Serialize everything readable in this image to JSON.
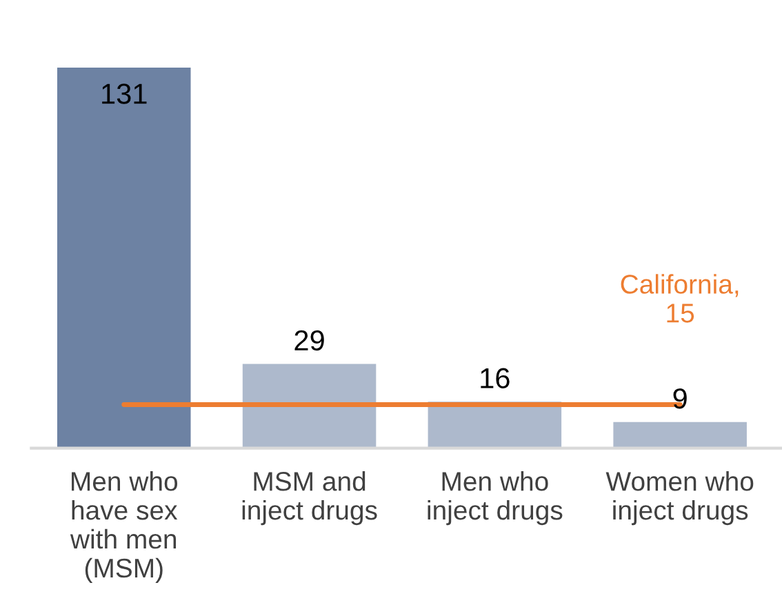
{
  "chart_data": {
    "type": "bar",
    "categories": [
      "Men who\nhave sex\nwith men\n(MSM)",
      "MSM and\ninject drugs",
      "Men who\ninject drugs",
      "Women who\ninject drugs"
    ],
    "series": [
      {
        "type": "bar",
        "colors": [
          "#6d82a3",
          "#adb9cc",
          "#adb9cc",
          "#adb9cc"
        ],
        "values": [
          131,
          29,
          16,
          9
        ],
        "value_labels": [
          "131",
          "29",
          "16",
          "9"
        ]
      },
      {
        "type": "line",
        "color": "#ed7d31",
        "values": [
          15,
          15,
          15,
          15
        ],
        "value_labels": [
          null,
          null,
          null,
          "California,\n15"
        ]
      }
    ],
    "grid": false,
    "legend": false
  }
}
